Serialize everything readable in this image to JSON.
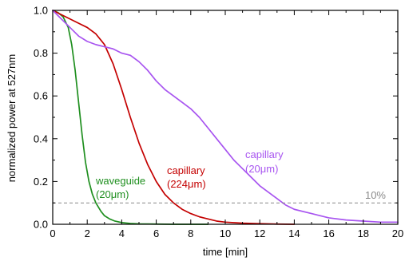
{
  "chart_data": {
    "type": "line",
    "xlabel": "time [min]",
    "ylabel": "normalized power at 527nm",
    "xlim": [
      0,
      20
    ],
    "ylim": [
      0,
      1.0
    ],
    "x_ticks": [
      "0",
      "2",
      "4",
      "6",
      "8",
      "10",
      "12",
      "14",
      "16",
      "18",
      "20"
    ],
    "y_ticks": [
      "0.0",
      "0.2",
      "0.4",
      "0.6",
      "0.8",
      "1.0"
    ],
    "grid": false,
    "colors": {
      "waveguide": "#1f8f1f",
      "capillary_224": "#c40000",
      "capillary_20": "#a855f0",
      "threshold": "#8a8a8a"
    },
    "threshold": {
      "y": 0.1,
      "label": "10%"
    },
    "series": [
      {
        "id": "waveguide",
        "label_lines": [
          "waveguide",
          "(20μm)"
        ],
        "x": [
          0,
          0.3,
          0.6,
          0.9,
          1.1,
          1.3,
          1.5,
          1.7,
          1.9,
          2.1,
          2.3,
          2.5,
          2.8,
          3.0,
          3.3,
          3.6,
          4.0,
          4.5,
          5.0,
          6.0,
          7.0,
          8.0,
          9.0
        ],
        "y": [
          1.0,
          0.99,
          0.97,
          0.92,
          0.84,
          0.72,
          0.57,
          0.42,
          0.29,
          0.2,
          0.14,
          0.1,
          0.06,
          0.04,
          0.025,
          0.015,
          0.008,
          0.004,
          0.002,
          0.001,
          0.0,
          0.0,
          0.0
        ]
      },
      {
        "id": "capillary_224",
        "label_lines": [
          "capillary",
          "(224μm)"
        ],
        "x": [
          0,
          0.5,
          1.0,
          1.5,
          2.0,
          2.5,
          3.0,
          3.5,
          4.0,
          4.5,
          5.0,
          5.5,
          6.0,
          6.5,
          7.0,
          7.5,
          8.0,
          8.5,
          9.0,
          9.5,
          10.0,
          11.0,
          12.0,
          13.0,
          14.0
        ],
        "y": [
          1.0,
          0.98,
          0.96,
          0.94,
          0.92,
          0.89,
          0.84,
          0.75,
          0.63,
          0.5,
          0.38,
          0.28,
          0.2,
          0.14,
          0.1,
          0.07,
          0.05,
          0.035,
          0.025,
          0.015,
          0.01,
          0.005,
          0.003,
          0.001,
          0.0
        ]
      },
      {
        "id": "capillary_20",
        "label_lines": [
          "capillary",
          "(20μm)"
        ],
        "x": [
          0,
          0.5,
          1.0,
          1.5,
          2.0,
          2.5,
          3.0,
          3.5,
          4.0,
          4.5,
          5.0,
          5.5,
          6.0,
          6.5,
          7.0,
          7.5,
          8.0,
          8.5,
          9.0,
          9.5,
          10.0,
          10.5,
          11.0,
          11.5,
          12.0,
          12.5,
          13.0,
          13.5,
          14.0,
          15.0,
          16.0,
          17.0,
          18.0,
          19.0,
          20.0
        ],
        "y": [
          1.0,
          0.96,
          0.92,
          0.88,
          0.855,
          0.84,
          0.83,
          0.82,
          0.8,
          0.79,
          0.76,
          0.72,
          0.67,
          0.63,
          0.6,
          0.57,
          0.54,
          0.5,
          0.45,
          0.4,
          0.35,
          0.3,
          0.26,
          0.22,
          0.18,
          0.15,
          0.12,
          0.09,
          0.07,
          0.05,
          0.03,
          0.02,
          0.015,
          0.01,
          0.01
        ]
      }
    ]
  }
}
